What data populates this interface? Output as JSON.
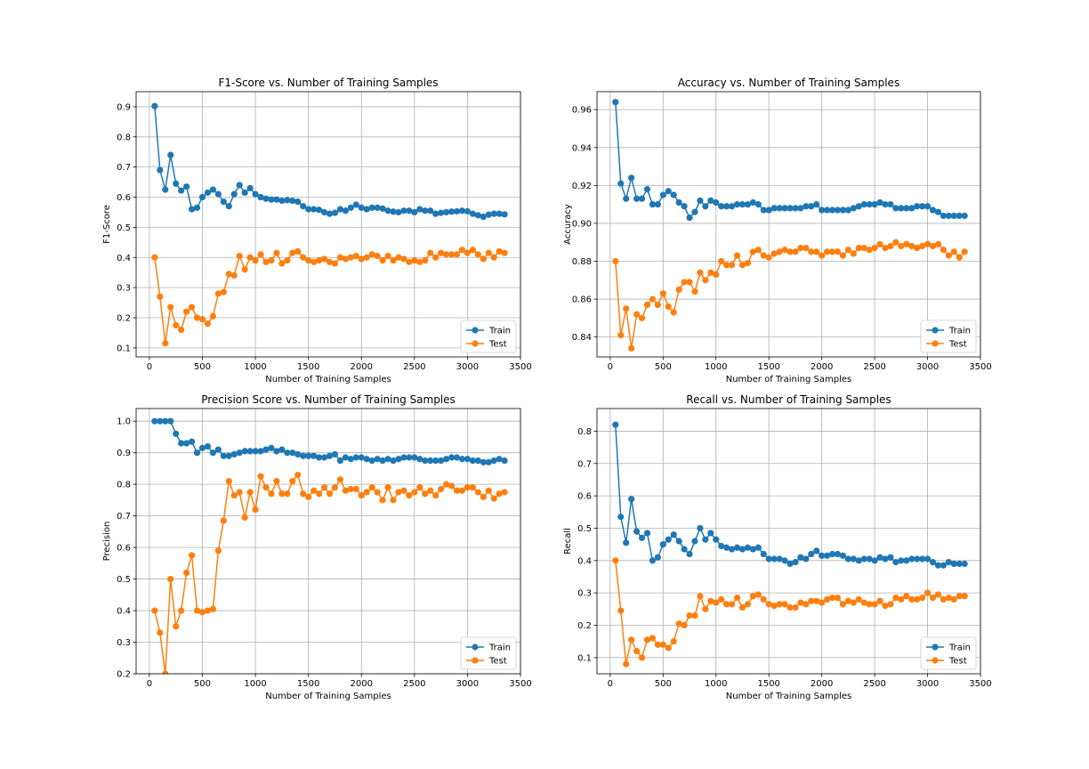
{
  "colors": {
    "train": "#1f77b4",
    "test": "#ff7f0e",
    "grid": "#b0b0b0"
  },
  "chart_data": [
    {
      "type": "line",
      "title": "F1-Score vs. Number of Training Samples",
      "xlabel": "Number of Training Samples",
      "ylabel": "F1-Score",
      "xlim": [
        -125,
        3500
      ],
      "ylim": [
        0.07,
        0.95
      ],
      "xticks": [
        0,
        500,
        1000,
        1500,
        2000,
        2500,
        3000,
        3500
      ],
      "yticks": [
        0.1,
        0.2,
        0.3,
        0.4,
        0.5,
        0.6,
        0.7,
        0.8,
        0.9
      ],
      "ytick_labels": [
        "0.1",
        "0.2",
        "0.3",
        "0.4",
        "0.5",
        "0.6",
        "0.7",
        "0.8",
        "0.9"
      ],
      "grid": true,
      "legend": "lower-right",
      "series": [
        {
          "name": "Train",
          "values": [
            0.902,
            0.69,
            0.625,
            0.74,
            0.645,
            0.622,
            0.635,
            0.56,
            0.565,
            0.6,
            0.615,
            0.625,
            0.61,
            0.585,
            0.57,
            0.61,
            0.64,
            0.615,
            0.63,
            0.61,
            0.6,
            0.595,
            0.592,
            0.592,
            0.588,
            0.59,
            0.588,
            0.585,
            0.57,
            0.56,
            0.56,
            0.558,
            0.55,
            0.545,
            0.548,
            0.56,
            0.555,
            0.565,
            0.575,
            0.565,
            0.56,
            0.565,
            0.565,
            0.562,
            0.555,
            0.552,
            0.55,
            0.555,
            0.555,
            0.55,
            0.56,
            0.555,
            0.555,
            0.545,
            0.548,
            0.55,
            0.552,
            0.553,
            0.555,
            0.553,
            0.545,
            0.54,
            0.535,
            0.542,
            0.545,
            0.545,
            0.543
          ]
        },
        {
          "name": "Test",
          "values": [
            0.4,
            0.27,
            0.115,
            0.235,
            0.175,
            0.16,
            0.22,
            0.235,
            0.2,
            0.195,
            0.18,
            0.205,
            0.28,
            0.285,
            0.345,
            0.34,
            0.405,
            0.36,
            0.4,
            0.39,
            0.41,
            0.385,
            0.39,
            0.415,
            0.38,
            0.39,
            0.415,
            0.42,
            0.4,
            0.39,
            0.385,
            0.39,
            0.395,
            0.385,
            0.38,
            0.4,
            0.395,
            0.4,
            0.405,
            0.395,
            0.4,
            0.41,
            0.405,
            0.39,
            0.405,
            0.39,
            0.4,
            0.395,
            0.385,
            0.39,
            0.385,
            0.39,
            0.415,
            0.4,
            0.415,
            0.41,
            0.41,
            0.41,
            0.425,
            0.415,
            0.425,
            0.41,
            0.395,
            0.415,
            0.4,
            0.42,
            0.415
          ]
        }
      ]
    },
    {
      "type": "line",
      "title": "Accuracy vs. Number of Training Samples",
      "xlabel": "Number of Training Samples",
      "ylabel": "Accuracy",
      "xlim": [
        -125,
        3500
      ],
      "ylim": [
        0.8295,
        0.9695
      ],
      "xticks": [
        0,
        500,
        1000,
        1500,
        2000,
        2500,
        3000,
        3500
      ],
      "yticks": [
        0.84,
        0.86,
        0.88,
        0.9,
        0.92,
        0.94,
        0.96
      ],
      "ytick_labels": [
        "0.84",
        "0.86",
        "0.88",
        "0.90",
        "0.92",
        "0.94",
        "0.96"
      ],
      "grid": true,
      "legend": "lower-right",
      "series": [
        {
          "name": "Train",
          "values": [
            0.964,
            0.921,
            0.913,
            0.924,
            0.913,
            0.913,
            0.918,
            0.91,
            0.91,
            0.915,
            0.917,
            0.915,
            0.911,
            0.909,
            0.903,
            0.906,
            0.912,
            0.909,
            0.912,
            0.911,
            0.909,
            0.909,
            0.909,
            0.91,
            0.91,
            0.91,
            0.911,
            0.91,
            0.907,
            0.907,
            0.908,
            0.908,
            0.908,
            0.908,
            0.908,
            0.908,
            0.909,
            0.909,
            0.91,
            0.907,
            0.907,
            0.907,
            0.907,
            0.907,
            0.907,
            0.908,
            0.909,
            0.91,
            0.91,
            0.91,
            0.911,
            0.91,
            0.91,
            0.908,
            0.908,
            0.908,
            0.908,
            0.909,
            0.909,
            0.909,
            0.907,
            0.906,
            0.904,
            0.904,
            0.904,
            0.904,
            0.904
          ]
        },
        {
          "name": "Test",
          "values": [
            0.88,
            0.841,
            0.855,
            0.834,
            0.852,
            0.85,
            0.857,
            0.86,
            0.857,
            0.863,
            0.856,
            0.853,
            0.865,
            0.869,
            0.869,
            0.864,
            0.874,
            0.87,
            0.874,
            0.873,
            0.88,
            0.878,
            0.878,
            0.883,
            0.878,
            0.879,
            0.885,
            0.886,
            0.883,
            0.882,
            0.884,
            0.885,
            0.886,
            0.885,
            0.885,
            0.887,
            0.887,
            0.885,
            0.885,
            0.883,
            0.885,
            0.885,
            0.885,
            0.883,
            0.886,
            0.884,
            0.887,
            0.887,
            0.886,
            0.887,
            0.889,
            0.887,
            0.888,
            0.89,
            0.888,
            0.889,
            0.888,
            0.887,
            0.888,
            0.889,
            0.888,
            0.889,
            0.886,
            0.883,
            0.885,
            0.882,
            0.885
          ]
        }
      ]
    },
    {
      "type": "line",
      "title": "Precision Score vs. Number of Training Samples",
      "xlabel": "Number of Training Samples",
      "ylabel": "Precision",
      "xlim": [
        -125,
        3500
      ],
      "ylim": [
        0.2,
        1.04
      ],
      "xticks": [
        0,
        500,
        1000,
        1500,
        2000,
        2500,
        3000,
        3500
      ],
      "yticks": [
        0.2,
        0.3,
        0.4,
        0.5,
        0.6,
        0.7,
        0.8,
        0.9,
        1.0
      ],
      "ytick_labels": [
        "0.2",
        "0.3",
        "0.4",
        "0.5",
        "0.6",
        "0.7",
        "0.8",
        "0.9",
        "1.0"
      ],
      "grid": true,
      "legend": "lower-right",
      "series": [
        {
          "name": "Train",
          "values": [
            1.0,
            1.0,
            1.0,
            1.0,
            0.96,
            0.93,
            0.93,
            0.935,
            0.9,
            0.915,
            0.92,
            0.9,
            0.91,
            0.89,
            0.89,
            0.895,
            0.9,
            0.905,
            0.905,
            0.905,
            0.905,
            0.91,
            0.915,
            0.905,
            0.91,
            0.9,
            0.9,
            0.895,
            0.89,
            0.89,
            0.89,
            0.885,
            0.885,
            0.89,
            0.895,
            0.875,
            0.885,
            0.88,
            0.885,
            0.885,
            0.88,
            0.875,
            0.88,
            0.875,
            0.88,
            0.875,
            0.88,
            0.885,
            0.885,
            0.885,
            0.88,
            0.875,
            0.875,
            0.875,
            0.875,
            0.88,
            0.885,
            0.885,
            0.88,
            0.88,
            0.875,
            0.875,
            0.87,
            0.87,
            0.875,
            0.88,
            0.875
          ]
        },
        {
          "name": "Test",
          "values": [
            0.4,
            0.33,
            0.2,
            0.5,
            0.35,
            0.4,
            0.52,
            0.575,
            0.4,
            0.395,
            0.4,
            0.405,
            0.59,
            0.685,
            0.81,
            0.765,
            0.775,
            0.695,
            0.775,
            0.72,
            0.825,
            0.79,
            0.77,
            0.81,
            0.77,
            0.77,
            0.81,
            0.83,
            0.77,
            0.76,
            0.78,
            0.77,
            0.79,
            0.77,
            0.79,
            0.815,
            0.78,
            0.785,
            0.785,
            0.765,
            0.775,
            0.79,
            0.775,
            0.75,
            0.79,
            0.75,
            0.775,
            0.78,
            0.765,
            0.775,
            0.79,
            0.77,
            0.78,
            0.765,
            0.785,
            0.8,
            0.795,
            0.78,
            0.78,
            0.79,
            0.79,
            0.775,
            0.76,
            0.78,
            0.755,
            0.77,
            0.775
          ]
        }
      ]
    },
    {
      "type": "line",
      "title": "Recall vs. Number of Training Samples",
      "xlabel": "Number of Training Samples",
      "ylabel": "Recall",
      "xlim": [
        -125,
        3500
      ],
      "ylim": [
        0.05,
        0.87
      ],
      "xticks": [
        0,
        500,
        1000,
        1500,
        2000,
        2500,
        3000,
        3500
      ],
      "yticks": [
        0.1,
        0.2,
        0.3,
        0.4,
        0.5,
        0.6,
        0.7,
        0.8
      ],
      "ytick_labels": [
        "0.1",
        "0.2",
        "0.3",
        "0.4",
        "0.5",
        "0.6",
        "0.7",
        "0.8"
      ],
      "grid": true,
      "legend": "lower-right",
      "series": [
        {
          "name": "Train",
          "values": [
            0.82,
            0.535,
            0.455,
            0.59,
            0.49,
            0.47,
            0.485,
            0.4,
            0.41,
            0.45,
            0.465,
            0.48,
            0.46,
            0.435,
            0.42,
            0.46,
            0.5,
            0.465,
            0.485,
            0.465,
            0.445,
            0.44,
            0.435,
            0.44,
            0.435,
            0.44,
            0.435,
            0.44,
            0.42,
            0.405,
            0.405,
            0.405,
            0.4,
            0.39,
            0.395,
            0.41,
            0.405,
            0.42,
            0.43,
            0.415,
            0.415,
            0.42,
            0.42,
            0.415,
            0.405,
            0.405,
            0.4,
            0.405,
            0.405,
            0.4,
            0.41,
            0.405,
            0.41,
            0.395,
            0.4,
            0.4,
            0.405,
            0.405,
            0.405,
            0.405,
            0.395,
            0.385,
            0.385,
            0.395,
            0.39,
            0.39,
            0.39
          ]
        },
        {
          "name": "Test",
          "values": [
            0.4,
            0.245,
            0.08,
            0.155,
            0.12,
            0.1,
            0.155,
            0.16,
            0.14,
            0.14,
            0.13,
            0.15,
            0.205,
            0.2,
            0.23,
            0.23,
            0.29,
            0.25,
            0.275,
            0.27,
            0.28,
            0.265,
            0.265,
            0.285,
            0.255,
            0.265,
            0.29,
            0.295,
            0.28,
            0.265,
            0.26,
            0.265,
            0.265,
            0.255,
            0.255,
            0.27,
            0.265,
            0.275,
            0.275,
            0.27,
            0.28,
            0.285,
            0.285,
            0.265,
            0.275,
            0.27,
            0.28,
            0.27,
            0.265,
            0.265,
            0.275,
            0.26,
            0.265,
            0.285,
            0.28,
            0.29,
            0.28,
            0.28,
            0.285,
            0.3,
            0.285,
            0.295,
            0.28,
            0.285,
            0.28,
            0.29,
            0.29
          ]
        }
      ]
    }
  ]
}
